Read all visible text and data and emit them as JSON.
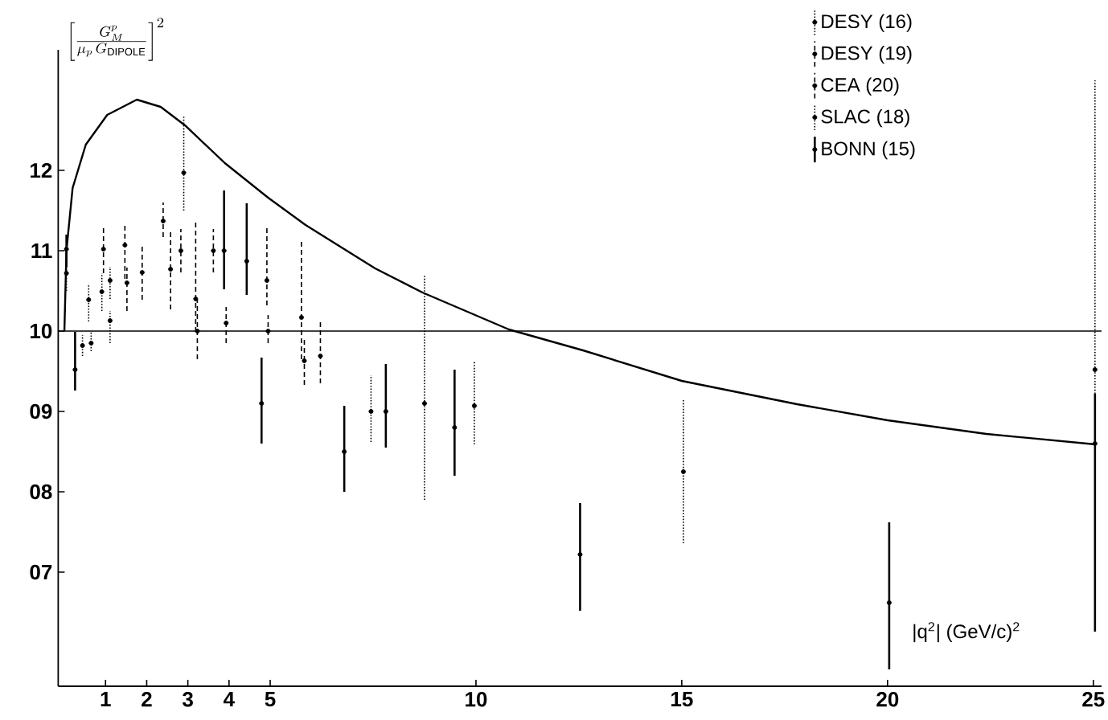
{
  "chart_data": {
    "type": "scatter",
    "ylabel": "\\left[\\frac{G_M^p}{\\mu_p\\,G_{\\mathrm{DIPOLE}}}\\right]^2",
    "xlabel": "|q$^{2}$| (GeV/c)$^{2}$",
    "xlim": [
      -0.15,
      25.2
    ],
    "ylim": [
      5.58,
      13.5
    ],
    "xticks": [
      1,
      2,
      3,
      4,
      5,
      10,
      15,
      20,
      25
    ],
    "yticks": [
      {
        "value": 7,
        "label": "07"
      },
      {
        "value": 8,
        "label": "08"
      },
      {
        "value": 9,
        "label": "09"
      },
      10,
      11,
      12
    ],
    "grid": false,
    "legend": "top right",
    "marker": "circle",
    "ref_lines": [
      {
        "axis": "y",
        "value": 10,
        "color": "#000000"
      }
    ],
    "series": [
      {
        "name": "DESY (16)",
        "color": "#000000",
        "line_style": "dotted",
        "x": [
          0.05,
          0.44,
          0.59,
          0.65,
          0.91,
          1.11,
          1.11
        ],
        "values": [
          10.72,
          9.82,
          10.39,
          9.85,
          10.49,
          10.13,
          10.63
        ],
        "errors": [
          [
            10.5,
            10.9
          ],
          [
            9.69,
            9.95
          ],
          [
            10.12,
            10.59
          ],
          [
            9.75,
            10.0
          ],
          [
            10.25,
            10.72
          ],
          [
            9.85,
            10.25
          ],
          [
            10.4,
            10.8
          ]
        ]
      },
      {
        "name": "DESY (19)",
        "color": "#000000",
        "line_style": "dashed",
        "x": [
          1.52,
          1.89,
          2.58,
          2.83,
          3.62,
          4.92
        ],
        "values": [
          10.6,
          10.73,
          10.77,
          11.0,
          11.0,
          10.63
        ],
        "errors": [
          [
            10.25,
            10.79
          ],
          [
            10.39,
            11.05
          ],
          [
            10.27,
            11.27
          ],
          [
            10.73,
            11.27
          ],
          [
            10.73,
            11.27
          ],
          [
            10.32,
            11.29
          ]
        ]
      },
      {
        "name": "CEA (20)",
        "color": "#000000",
        "line_style": "dashed",
        "x": [
          0.95,
          1.47,
          2.4,
          3.19,
          3.23,
          3.93,
          4.95,
          5.76,
          5.83,
          6.22
        ],
        "values": [
          11.02,
          11.07,
          11.37,
          10.4,
          10.0,
          10.1,
          10.0,
          10.17,
          9.63,
          9.69
        ],
        "errors": [
          [
            10.72,
            11.32
          ],
          [
            10.65,
            11.32
          ],
          [
            11.17,
            11.6
          ],
          [
            9.99,
            11.39
          ],
          [
            9.65,
            10.39
          ],
          [
            9.85,
            10.3
          ],
          [
            9.85,
            10.2
          ],
          [
            9.65,
            11.12
          ],
          [
            9.33,
            9.93
          ],
          [
            9.35,
            10.15
          ]
        ]
      },
      {
        "name": "SLAC (18)",
        "color": "#000000",
        "line_style": "dotted",
        "x": [
          2.9,
          7.45,
          8.75,
          9.96,
          15.04,
          25.04
        ],
        "values": [
          11.97,
          9.0,
          9.1,
          9.07,
          8.25,
          9.52
        ],
        "errors": [
          [
            11.5,
            12.67
          ],
          [
            8.62,
            9.45
          ],
          [
            7.9,
            10.7
          ],
          [
            8.59,
            9.62
          ],
          [
            7.36,
            9.16
          ],
          [
            9.22,
            13.12
          ]
        ]
      },
      {
        "name": "BONN (15)",
        "color": "#000000",
        "line_style": "solid",
        "x": [
          0.05,
          0.26,
          3.88,
          4.43,
          4.79,
          6.8,
          7.81,
          9.48,
          12.53,
          20.04,
          25.04
        ],
        "values": [
          11.02,
          9.52,
          11.0,
          10.87,
          9.1,
          8.5,
          9.0,
          8.8,
          7.22,
          6.62,
          8.6
        ],
        "errors": [
          [
            10.8,
            11.2
          ],
          [
            9.26,
            9.99
          ],
          [
            10.52,
            11.75
          ],
          [
            10.45,
            11.59
          ],
          [
            8.6,
            9.67
          ],
          [
            8.0,
            9.07
          ],
          [
            8.55,
            9.59
          ],
          [
            8.2,
            9.52
          ],
          [
            6.52,
            7.86
          ],
          [
            5.79,
            7.62
          ],
          [
            6.26,
            9.22
          ]
        ]
      },
      {
        "type": "line",
        "color": "#000000",
        "marker": "none",
        "line_style": "solid",
        "x": [
          0.0,
          0.05,
          0.2,
          0.52,
          1.04,
          1.76,
          2.34,
          2.93,
          3.9,
          4.95,
          5.86,
          7.55,
          8.7,
          10.8,
          12.6,
          15.0,
          17.8,
          20.0,
          22.4,
          25.05
        ],
        "values": [
          10.0,
          11.0,
          11.78,
          12.32,
          12.69,
          12.88,
          12.79,
          12.56,
          12.09,
          11.66,
          11.32,
          10.78,
          10.48,
          10.02,
          9.76,
          9.38,
          9.09,
          8.89,
          8.72,
          8.59
        ]
      }
    ]
  }
}
